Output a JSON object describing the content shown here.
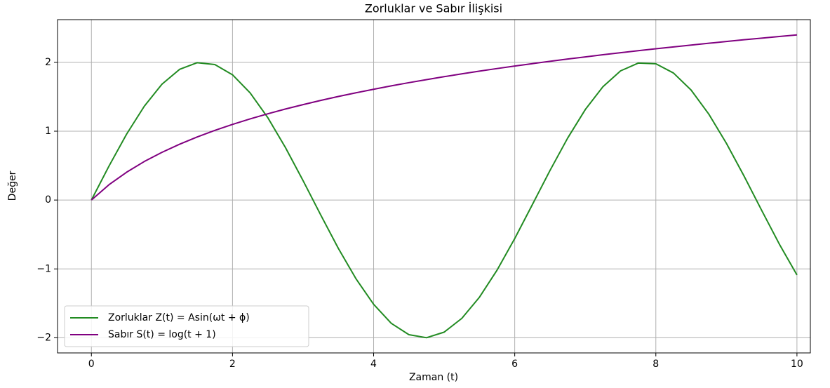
{
  "chart_data": {
    "type": "line",
    "title": "Zorluklar ve Sabır İlişkisi",
    "xlabel": "Zaman (t)",
    "ylabel": "Değer",
    "x": [
      0,
      0.25,
      0.5,
      0.75,
      1,
      1.25,
      1.5,
      1.75,
      2,
      2.25,
      2.5,
      2.75,
      3,
      3.25,
      3.5,
      3.75,
      4,
      4.25,
      4.5,
      4.75,
      5,
      5.25,
      5.5,
      5.75,
      6,
      6.25,
      6.5,
      6.75,
      7,
      7.25,
      7.5,
      7.75,
      8,
      8.25,
      8.5,
      8.75,
      9,
      9.25,
      9.5,
      9.75,
      10
    ],
    "series": [
      {
        "name": "Zorluklar Z(t) = Asin(ωt + ϕ)",
        "color": "#228b22",
        "values": [
          0,
          0.495,
          0.959,
          1.363,
          1.683,
          1.898,
          1.995,
          1.968,
          1.819,
          1.556,
          1.197,
          0.763,
          0.282,
          -0.216,
          -0.702,
          -1.143,
          -1.514,
          -1.79,
          -1.955,
          -1.999,
          -1.918,
          -1.718,
          -1.411,
          -1.017,
          -0.559,
          -0.066,
          0.43,
          0.9,
          1.314,
          1.646,
          1.876,
          1.989,
          1.979,
          1.845,
          1.597,
          1.249,
          0.824,
          0.349,
          -0.15,
          -0.639,
          -1.088
        ]
      },
      {
        "name": "Sabır S(t) = log(t + 1)",
        "color": "#800080",
        "values": [
          0,
          0.223,
          0.405,
          0.56,
          0.693,
          0.811,
          0.916,
          1.012,
          1.099,
          1.179,
          1.253,
          1.322,
          1.386,
          1.447,
          1.504,
          1.558,
          1.609,
          1.658,
          1.705,
          1.749,
          1.792,
          1.833,
          1.872,
          1.91,
          1.946,
          1.981,
          2.015,
          2.048,
          2.079,
          2.11,
          2.14,
          2.169,
          2.197,
          2.224,
          2.251,
          2.277,
          2.303,
          2.328,
          2.351,
          2.375,
          2.398
        ]
      }
    ],
    "xlim": [
      -0.48,
      10.19
    ],
    "ylim": [
      -2.22,
      2.62
    ],
    "xticks": [
      0,
      2,
      4,
      6,
      8,
      10
    ],
    "yticks": [
      {
        "value": -2,
        "label": "−2"
      },
      {
        "value": -1,
        "label": "−1"
      },
      0,
      1,
      2
    ],
    "grid": true,
    "legend": "lower left"
  }
}
